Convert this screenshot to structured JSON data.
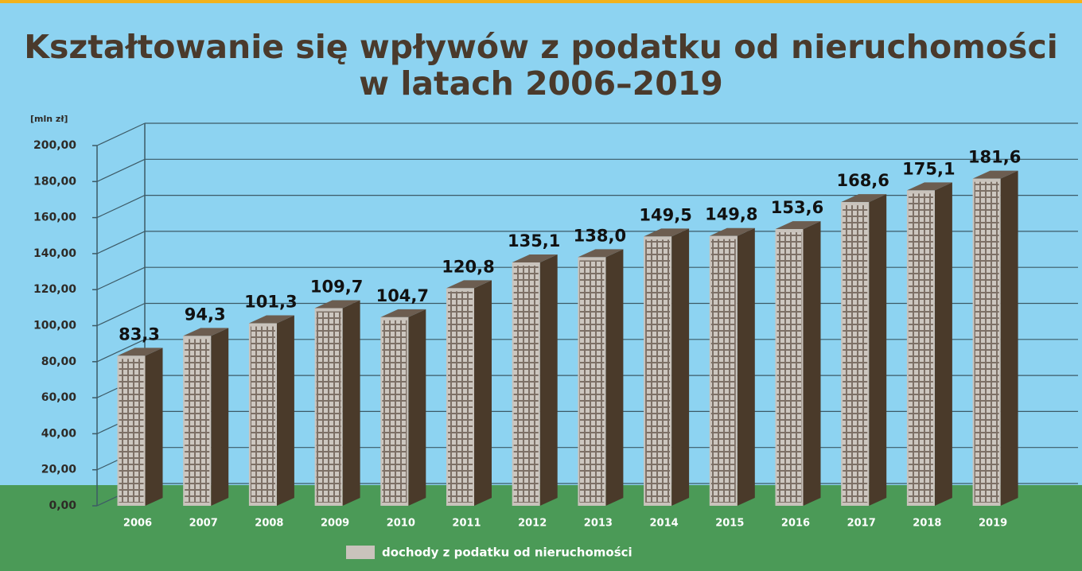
{
  "chart_data": {
    "type": "bar",
    "title": [
      "Kształtowanie się wpływów z podatku od nieruchomości",
      "w latach 2006–2019"
    ],
    "y_label": "[mln zł]",
    "categories": [
      "2006",
      "2007",
      "2008",
      "2009",
      "2010",
      "2011",
      "2012",
      "2013",
      "2014",
      "2015",
      "2016",
      "2017",
      "2018",
      "2019"
    ],
    "series": [
      {
        "name": "dochody z podatku od nieruchomości",
        "color": "#c9c3bc",
        "values": [
          83.3,
          94.3,
          101.3,
          109.7,
          104.7,
          120.8,
          135.1,
          138.0,
          149.5,
          149.8,
          153.6,
          168.6,
          175.1,
          181.6
        ],
        "value_labels": [
          "83,3",
          "94,3",
          "101,3",
          "109,7",
          "104,7",
          "120,8",
          "135,1",
          "138,0",
          "149,5",
          "149,8",
          "153,6",
          "168,6",
          "175,1",
          "181,6"
        ]
      }
    ],
    "ylim": [
      0,
      200
    ],
    "yticks": [
      {
        "value": 0,
        "label": "0,00"
      },
      {
        "value": 20,
        "label": "20,00"
      },
      {
        "value": 40,
        "label": "40,00"
      },
      {
        "value": 60,
        "label": "60,00"
      },
      {
        "value": 80,
        "label": "80,00"
      },
      {
        "value": 100,
        "label": "100,00"
      },
      {
        "value": 120,
        "label": "120,00"
      },
      {
        "value": 140,
        "label": "140,00"
      },
      {
        "value": 160,
        "label": "160,00"
      },
      {
        "value": 180,
        "label": "180,00"
      },
      {
        "value": 200,
        "label": "200,00"
      }
    ],
    "grid": true
  }
}
